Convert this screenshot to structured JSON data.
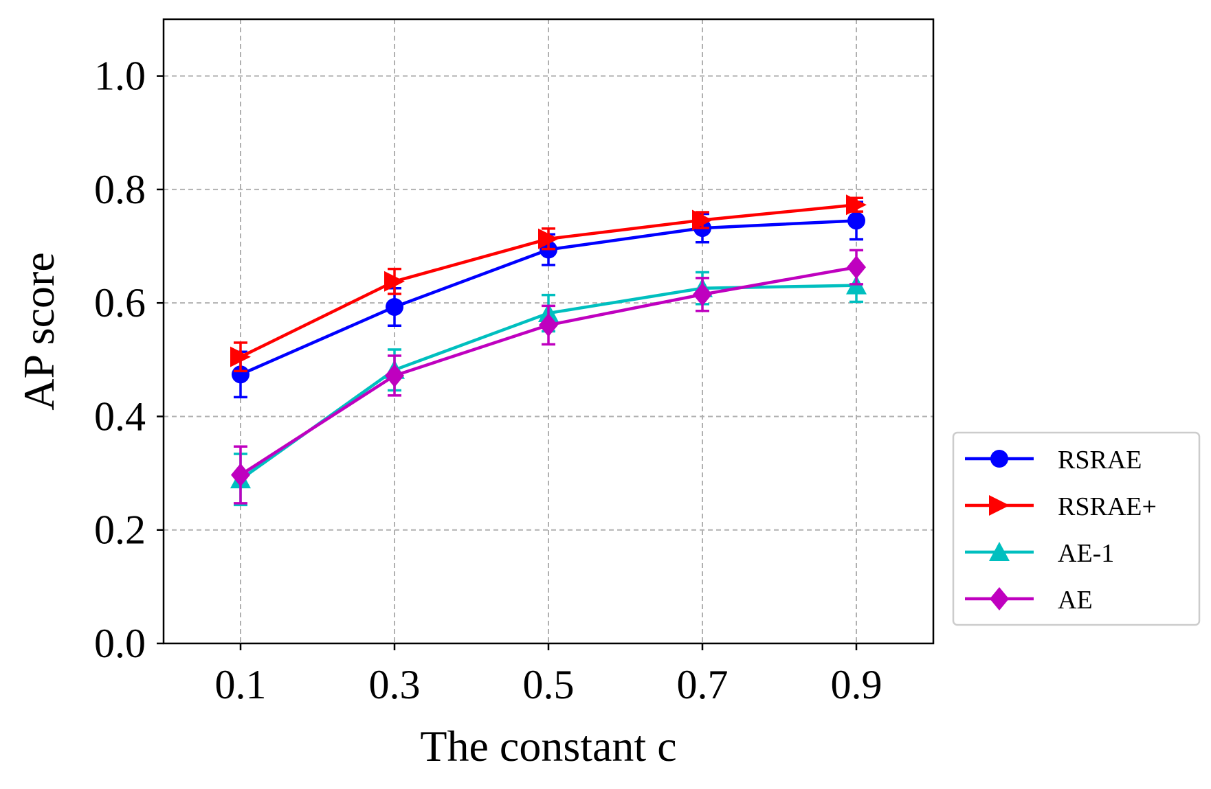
{
  "chart_data": {
    "type": "line",
    "title": "",
    "xlabel": "The constant c",
    "ylabel": "AP score",
    "x": [
      0.1,
      0.3,
      0.5,
      0.7,
      0.9
    ],
    "x_tick_labels": [
      "0.1",
      "0.3",
      "0.5",
      "0.7",
      "0.9"
    ],
    "xlim": [
      0.0,
      1.0
    ],
    "ylim": [
      0.0,
      1.1
    ],
    "y_ticks": [
      0.0,
      0.2,
      0.4,
      0.6,
      0.8,
      1.0
    ],
    "y_tick_labels": [
      "0.0",
      "0.2",
      "0.4",
      "0.6",
      "0.8",
      "1.0"
    ],
    "grid": true,
    "legend_position": "outside-bottom-right",
    "series": [
      {
        "name": "RSRAE",
        "color": "#0000ff",
        "marker": "circle",
        "values": [
          0.474,
          0.593,
          0.694,
          0.732,
          0.745
        ],
        "errors": [
          0.04,
          0.033,
          0.027,
          0.025,
          0.033
        ]
      },
      {
        "name": "RSRAE+",
        "color": "#ff0000",
        "marker": "triangle-right",
        "values": [
          0.505,
          0.638,
          0.713,
          0.746,
          0.773
        ],
        "errors": [
          0.025,
          0.022,
          0.018,
          0.014,
          0.012
        ]
      },
      {
        "name": "AE-1",
        "color": "#00bfbf",
        "marker": "triangle-up",
        "values": [
          0.289,
          0.482,
          0.582,
          0.626,
          0.631
        ],
        "errors": [
          0.045,
          0.036,
          0.032,
          0.028,
          0.029
        ]
      },
      {
        "name": "AE",
        "color": "#bf00bf",
        "marker": "diamond",
        "values": [
          0.297,
          0.472,
          0.561,
          0.615,
          0.663
        ],
        "errors": [
          0.05,
          0.035,
          0.034,
          0.029,
          0.03
        ]
      }
    ]
  }
}
